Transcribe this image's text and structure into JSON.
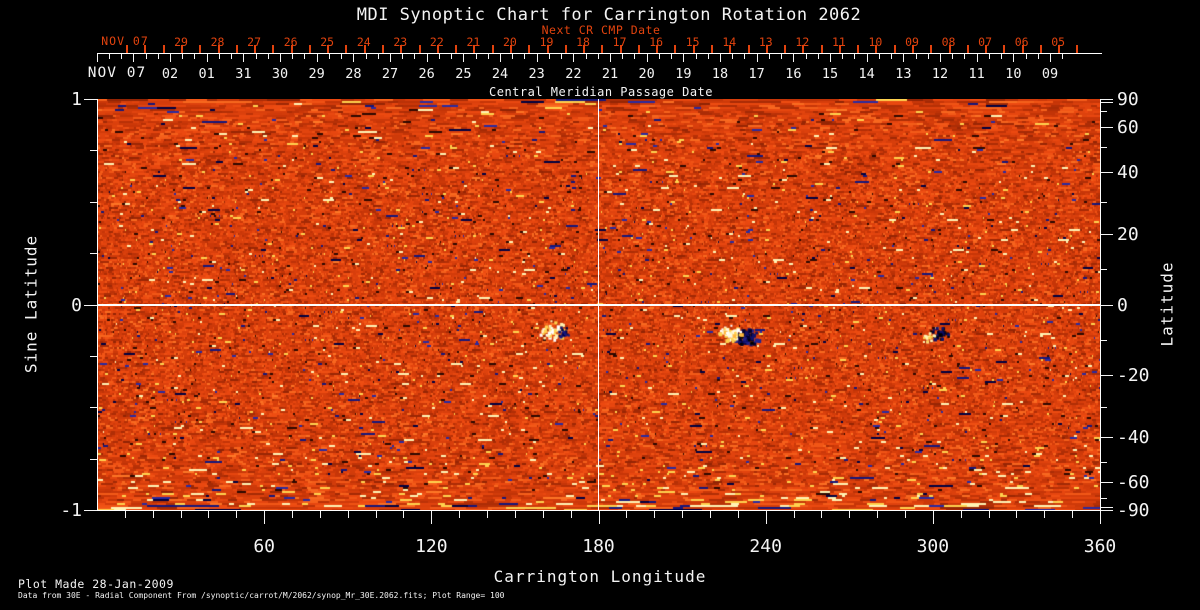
{
  "title": "MDI Synoptic Chart for Carrington Rotation 2062",
  "top_axis": {
    "caption_red": "Next CR CMP Date",
    "caption_white": "Central Meridian Passage Date",
    "red_month_label": "NOV 07",
    "red_day_labels": [
      "29",
      "28",
      "27",
      "26",
      "25",
      "24",
      "23",
      "22",
      "21",
      "20",
      "19",
      "18",
      "17",
      "16",
      "15",
      "14",
      "13",
      "12",
      "11",
      "10",
      "09",
      "08",
      "07",
      "06",
      "05"
    ],
    "white_month_label": "NOV 07",
    "white_day_labels": [
      "02",
      "01",
      "31",
      "30",
      "29",
      "28",
      "27",
      "26",
      "25",
      "24",
      "23",
      "22",
      "21",
      "20",
      "19",
      "18",
      "17",
      "16",
      "15",
      "14",
      "13",
      "12",
      "11",
      "10",
      "09"
    ]
  },
  "left_axis": {
    "label": "Sine Latitude",
    "tick_labels": [
      "1",
      "0",
      "-1"
    ],
    "tick_values": [
      1,
      0,
      -1
    ]
  },
  "right_axis": {
    "label": "Latitude",
    "tick_labels": [
      "90",
      "60",
      "40",
      "20",
      "0",
      "-20",
      "-40",
      "-60",
      "-90"
    ],
    "tick_values": [
      90,
      60,
      40,
      20,
      0,
      -20,
      -40,
      -60,
      -90
    ]
  },
  "bottom_axis": {
    "label": "Carrington Longitude",
    "tick_labels": [
      "60",
      "120",
      "180",
      "240",
      "300",
      "360"
    ],
    "tick_values": [
      60,
      120,
      180,
      240,
      300,
      360
    ]
  },
  "footer": {
    "line1": "Plot Made 28-Jan-2009",
    "line2": "Data from 30E - Radial Component From /synoptic/carrot/M/2062/synop_Mr_30E.2062.fits; Plot Range=  100"
  },
  "colors": {
    "background": "#000000",
    "axis": "#f4f4f4",
    "red_annotation": "#e2430e",
    "map_base_orange": "#e2430e",
    "map_bright": "#ffe9a0",
    "map_dark_polarity": "#101070"
  },
  "chart_data": {
    "type": "heatmap",
    "title": "MDI Synoptic Chart for Carrington Rotation 2062",
    "xlabel": "Carrington Longitude",
    "xlim": [
      0,
      360
    ],
    "xticks": [
      60,
      120,
      180,
      240,
      300,
      360
    ],
    "xtick_minor_step_deg": 10,
    "ylabel_left": "Sine Latitude",
    "ylim_sine": [
      -1,
      1
    ],
    "yticks_left_sine": [
      1,
      0,
      -1
    ],
    "ytick_minor_step_sine": 0.25,
    "ylabel_right": "Latitude",
    "yticks_right_deg": [
      90,
      60,
      40,
      20,
      0,
      -20,
      -40,
      -60,
      -90
    ],
    "top_axis_white": {
      "caption": "Central Meridian Passage Date",
      "month_year": "NOV 07",
      "day_labels_left_to_right": [
        "02",
        "01",
        "31",
        "30",
        "29",
        "28",
        "27",
        "26",
        "25",
        "24",
        "23",
        "22",
        "21",
        "20",
        "19",
        "18",
        "17",
        "16",
        "15",
        "14",
        "13",
        "12",
        "11",
        "10",
        "09"
      ],
      "meaning": "CMP dates for CR 2062, Nov 2007 back into Oct 2007, decreasing to the right"
    },
    "top_axis_red": {
      "caption": "Next CR CMP Date",
      "month_year": "NOV 07",
      "day_labels_left_to_right": [
        "29",
        "28",
        "27",
        "26",
        "25",
        "24",
        "23",
        "22",
        "21",
        "20",
        "19",
        "18",
        "17",
        "16",
        "15",
        "14",
        "13",
        "12",
        "11",
        "10",
        "09",
        "08",
        "07",
        "06",
        "05"
      ],
      "meaning": "CMP dates for the next Carrington rotation, November 2007"
    },
    "gridlines": {
      "vertical_at_longitude": 180,
      "horizontal_at_latitude": 0
    },
    "colormap": "solar magnetogram: orange-red base, bright yellow-white positive polarity, dark navy-black negative polarity",
    "plot_range_gauss": 100,
    "notable_features": [
      {
        "carrington_longitude": 233,
        "latitude_deg": -9,
        "description": "strong bipolar active region: bright plage beside dark navy polarity patch"
      },
      {
        "carrington_longitude": 163,
        "latitude_deg": -7,
        "description": "bright active region with small dark flux patches"
      },
      {
        "carrington_longitude": 302,
        "latitude_deg": -8,
        "description": "compact dark bipolar spots"
      }
    ],
    "edge_effects": "noisy bright/yellow band along lower map edge, dark blue horizontal streaks along upper edge (poorly observed polar projection)"
  }
}
